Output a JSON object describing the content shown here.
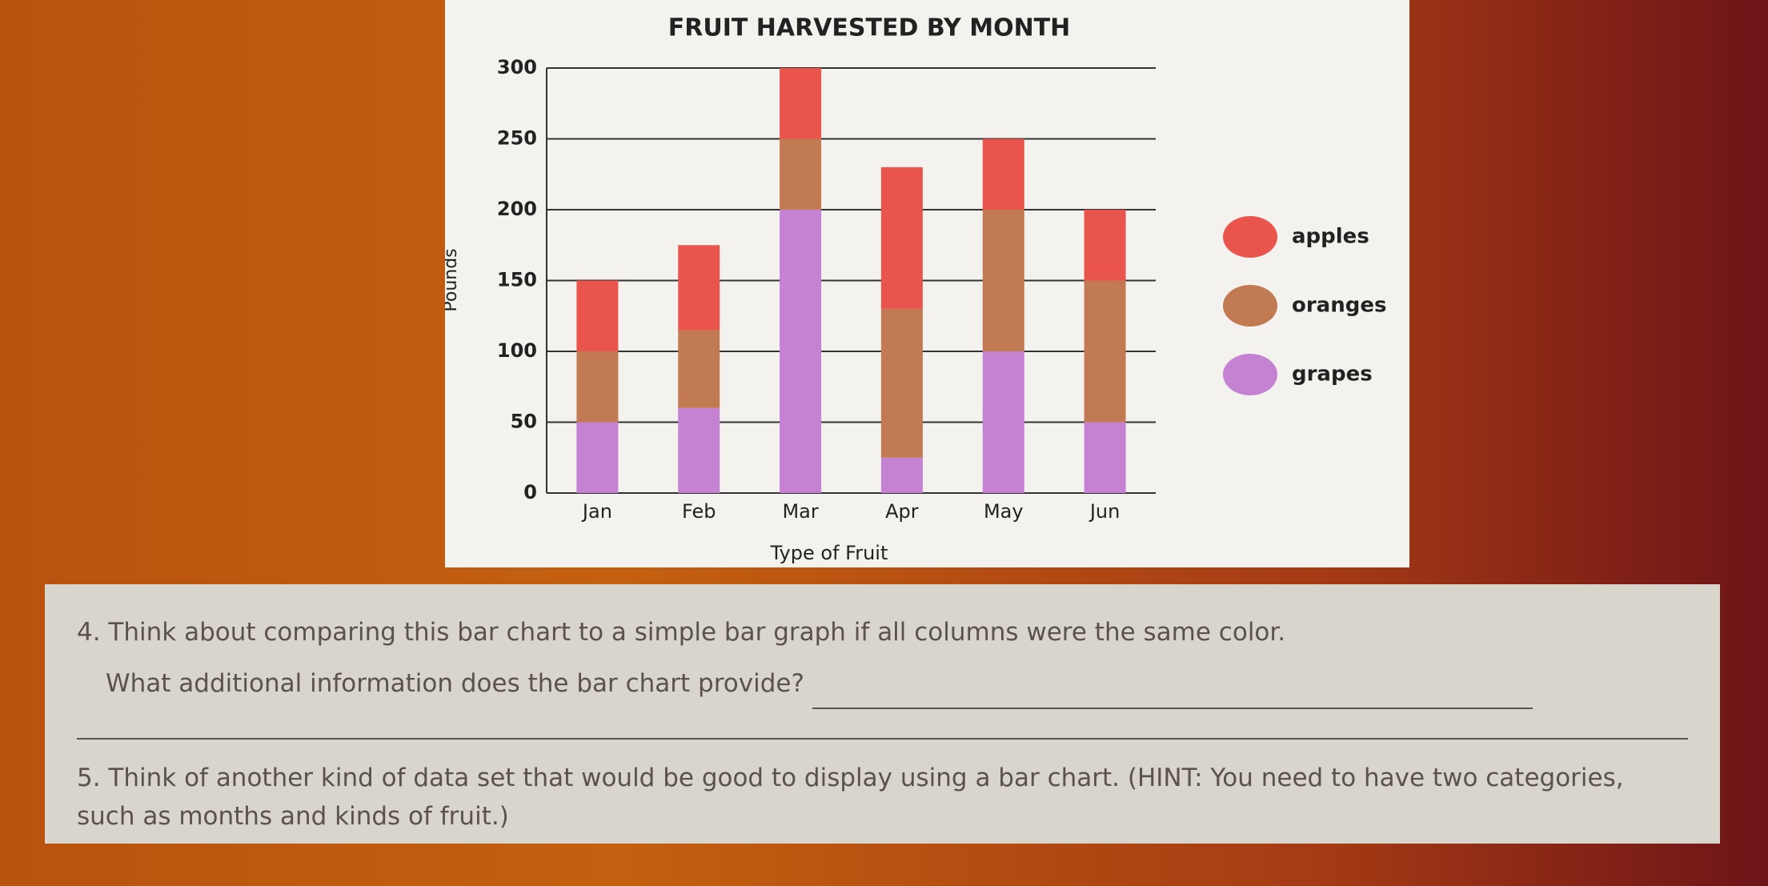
{
  "chart_data": {
    "type": "stacked_bar",
    "title": "FRUIT HARVESTED BY MONTH",
    "x_label": "Type of Fruit",
    "y_label": "Pounds",
    "categories": [
      "Jan",
      "Feb",
      "Mar",
      "Apr",
      "May",
      "Jun"
    ],
    "series": [
      {
        "name": "grapes",
        "color": "#c582d3",
        "values": [
          50,
          60,
          200,
          25,
          100,
          50
        ]
      },
      {
        "name": "oranges",
        "color": "#c27a52",
        "values": [
          50,
          55,
          50,
          105,
          100,
          100
        ]
      },
      {
        "name": "apples",
        "color": "#e9554c",
        "values": [
          50,
          60,
          50,
          100,
          50,
          50
        ]
      }
    ],
    "ylim": [
      0,
      300
    ],
    "yticks": [
      0,
      50,
      100,
      150,
      200,
      250,
      300
    ],
    "grid": true,
    "legend": "right"
  },
  "questions": [
    {
      "text": "4. Think about comparing this bar chart to a simple bar graph if all columns were the same color.",
      "prompt": "What additional information does the bar chart provide?"
    },
    {
      "text": "5. Think of another kind of data set that would be good to display using a bar chart. (HINT: You need to have two categories, such as months and kinds of fruit.)"
    }
  ]
}
